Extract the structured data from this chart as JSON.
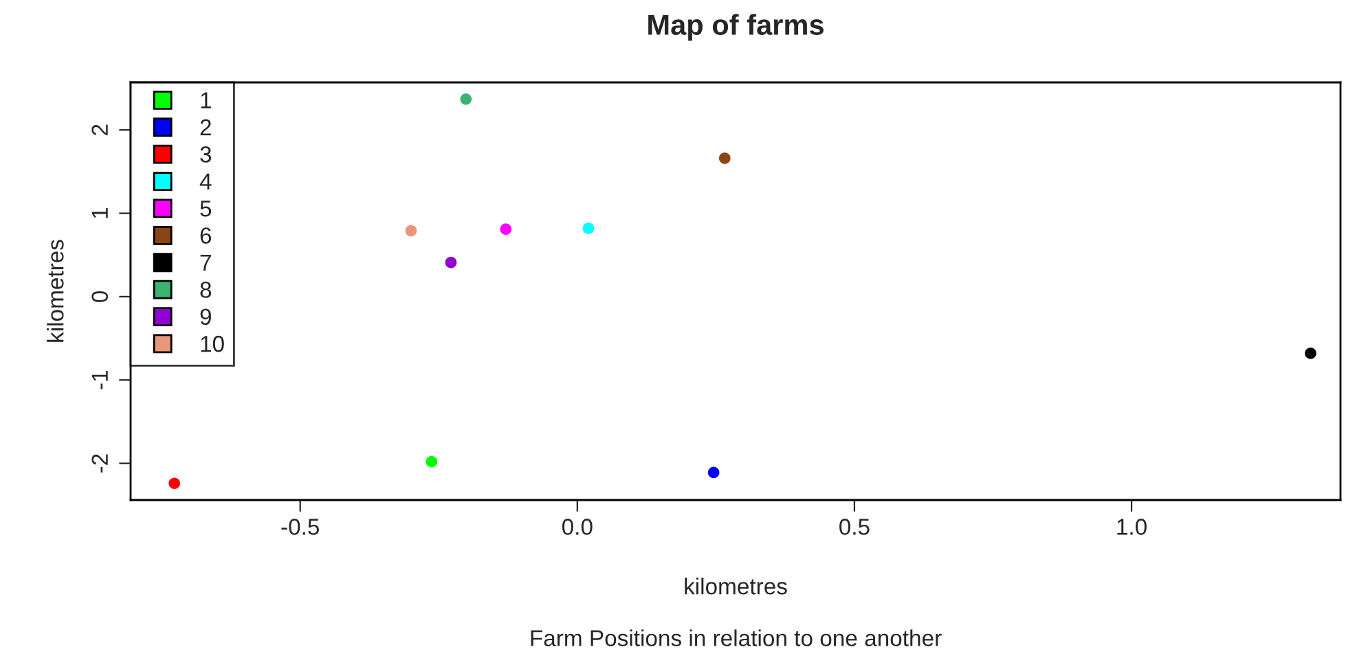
{
  "chart_data": {
    "type": "scatter",
    "title": "Map of farms",
    "xlabel": "kilometres",
    "ylabel": "kilometres",
    "annotations": [
      "Farm Positions in relation to one another"
    ],
    "xlim": [
      -0.806,
      1.377
    ],
    "ylim": [
      -2.44,
      2.57
    ],
    "xticks": [
      -0.5,
      {
        "value": 0,
        "label": "0.0"
      },
      0.5,
      {
        "value": 1,
        "label": "1.0"
      }
    ],
    "yticks": [
      -2,
      -1,
      0,
      1,
      2
    ],
    "grid": false,
    "legend": "top left",
    "marker": "circle",
    "series": [
      {
        "name": "1",
        "color": "#00ff00",
        "x": [
          -0.263
        ],
        "values": [
          -1.98
        ]
      },
      {
        "name": "2",
        "color": "#0000ff",
        "x": [
          0.246
        ],
        "values": [
          -2.11
        ]
      },
      {
        "name": "3",
        "color": "#ff0000",
        "x": [
          -0.727
        ],
        "values": [
          -2.24
        ]
      },
      {
        "name": "4",
        "color": "#00ffff",
        "x": [
          0.02
        ],
        "values": [
          0.82
        ]
      },
      {
        "name": "5",
        "color": "#ff00ff",
        "x": [
          -0.129
        ],
        "values": [
          0.81
        ]
      },
      {
        "name": "6",
        "color": "#8b4513",
        "x": [
          0.266
        ],
        "values": [
          1.66
        ]
      },
      {
        "name": "7",
        "color": "#000000",
        "x": [
          1.323
        ],
        "values": [
          -0.68
        ]
      },
      {
        "name": "8",
        "color": "#3cb371",
        "x": [
          -0.201
        ],
        "values": [
          2.37
        ]
      },
      {
        "name": "9",
        "color": "#9400d3",
        "x": [
          -0.228
        ],
        "values": [
          0.41
        ]
      },
      {
        "name": "10",
        "color": "#e9967a",
        "x": [
          -0.3
        ],
        "values": [
          0.79
        ]
      }
    ]
  }
}
